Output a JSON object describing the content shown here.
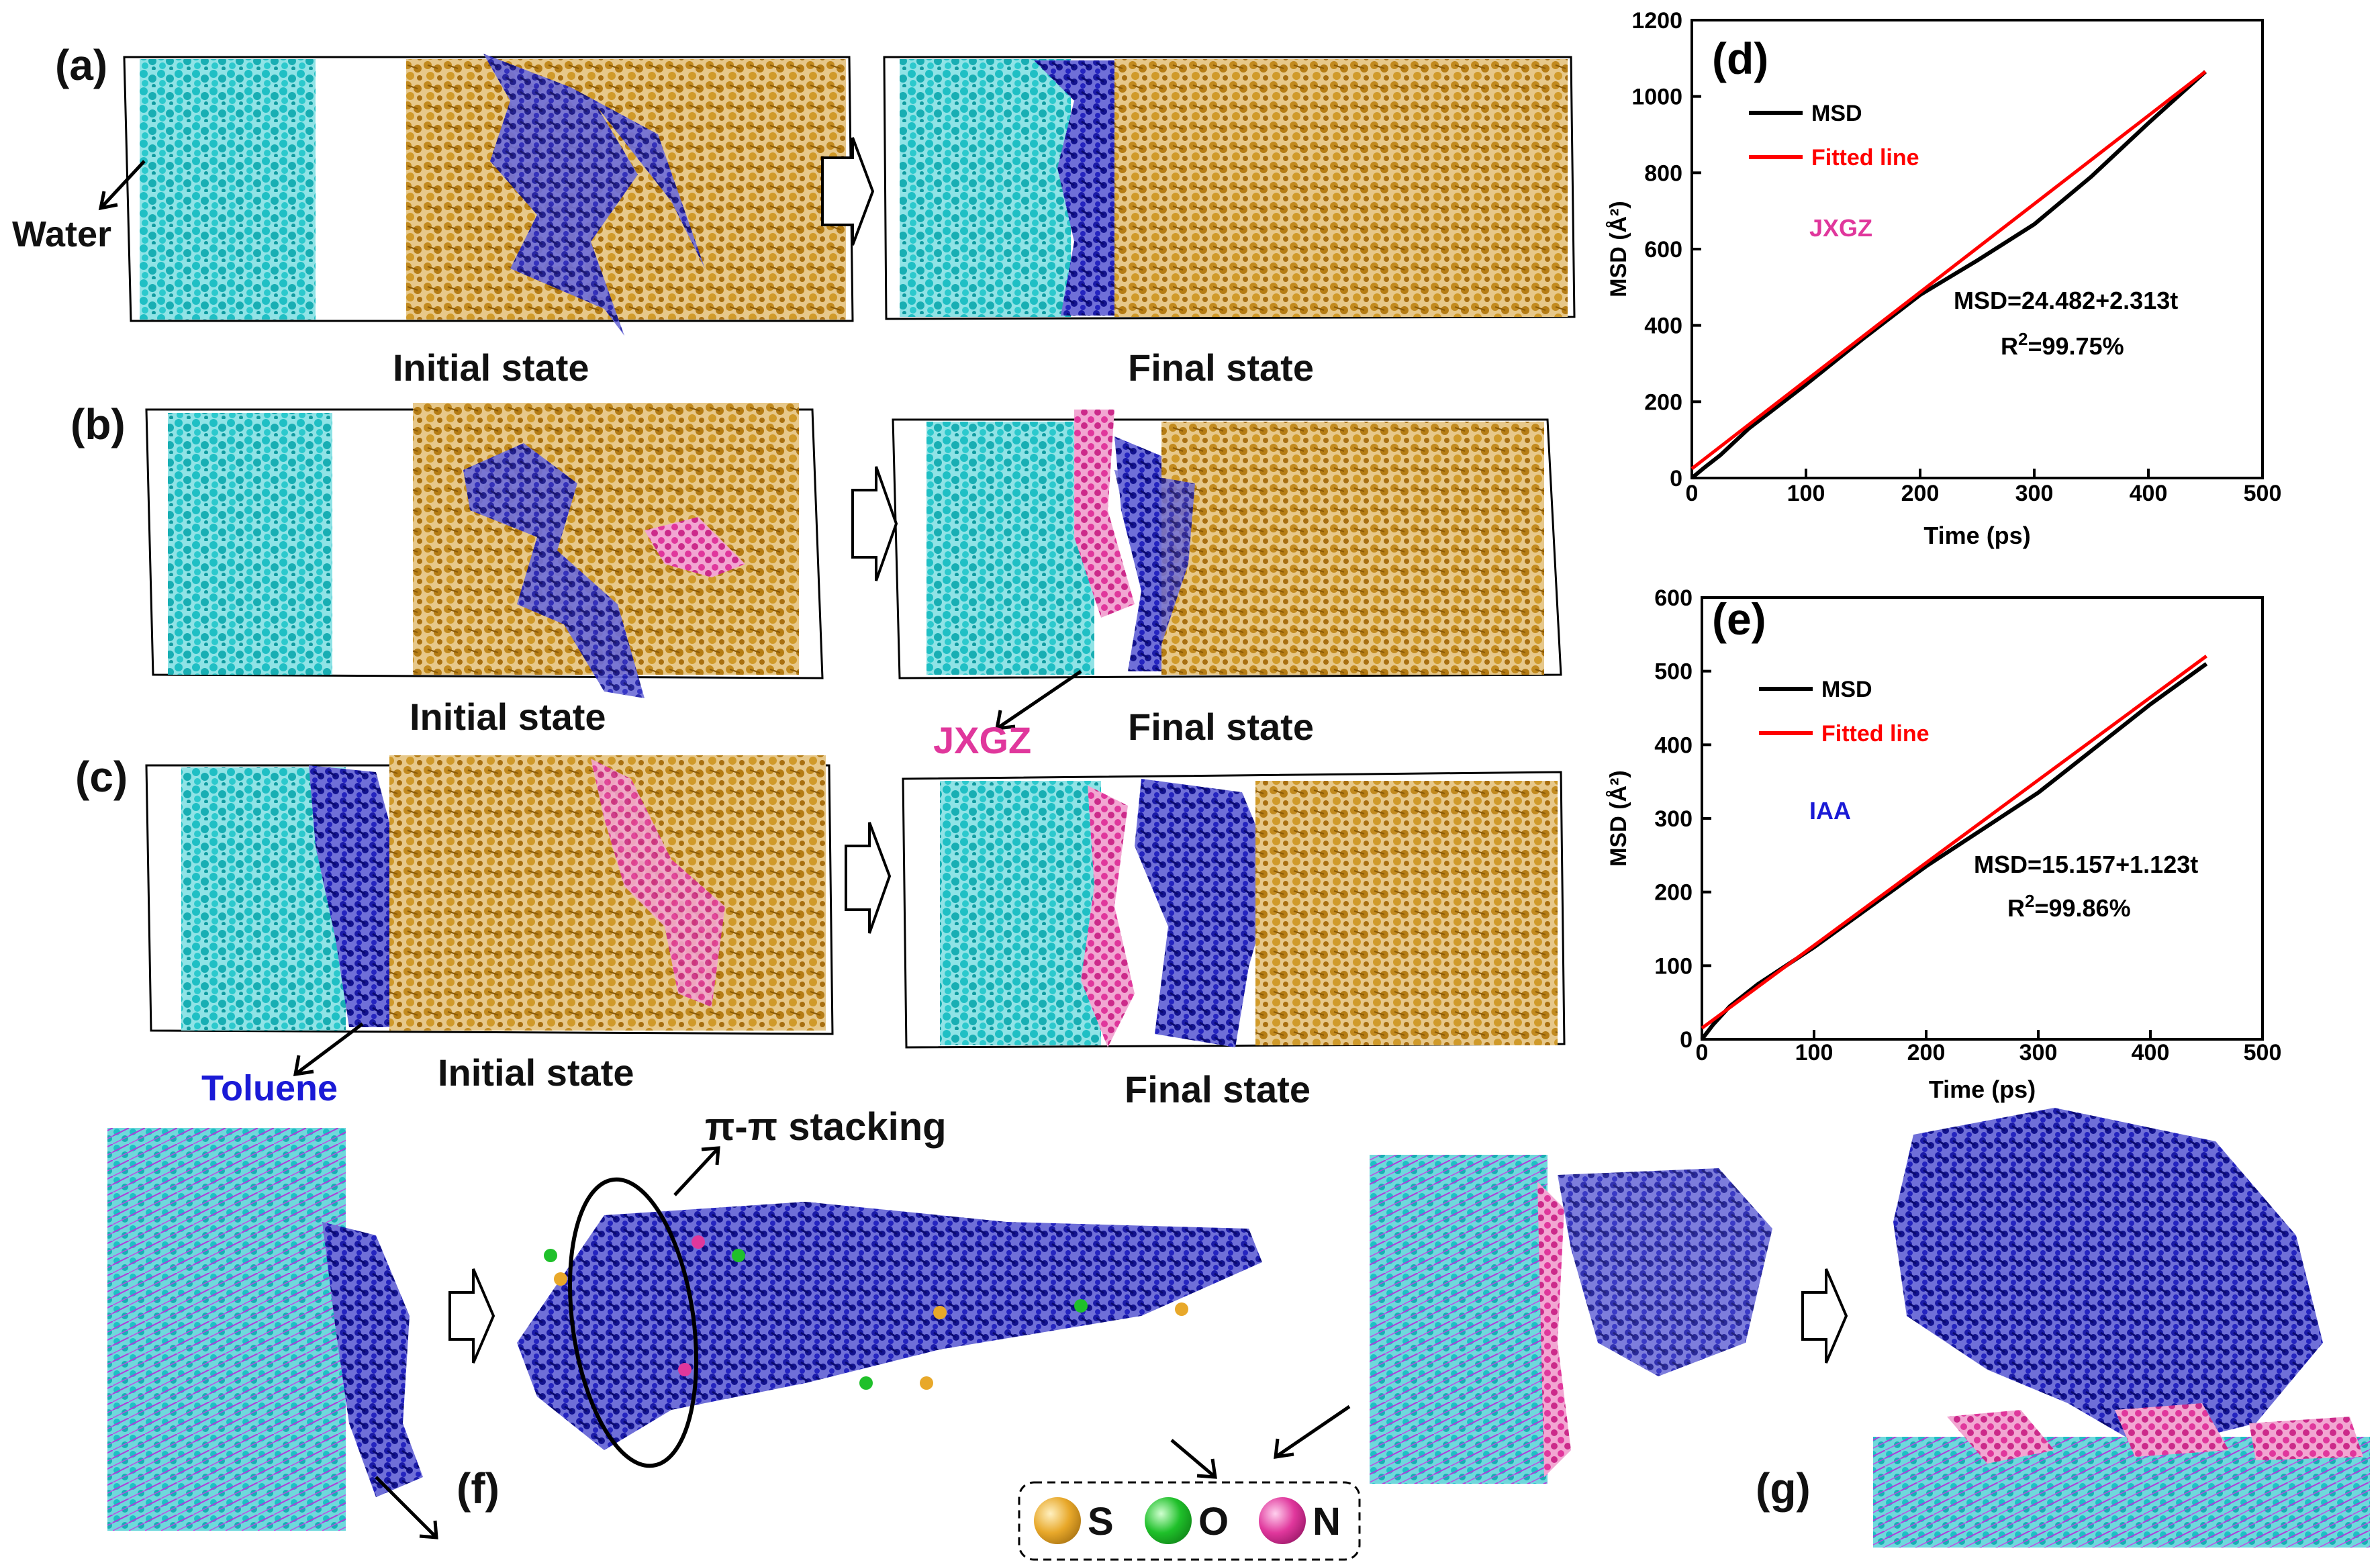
{
  "panels": {
    "a": {
      "label": "(a)",
      "initial_caption": "Initial state",
      "final_caption": "Final state",
      "water_label": "Water"
    },
    "b": {
      "label": "(b)",
      "initial_caption": "Initial state",
      "final_caption": "Final state",
      "jxgz_label": "JXGZ"
    },
    "c": {
      "label": "(c)",
      "initial_caption": "Initial state",
      "final_caption": "Final state",
      "toluene_label": "Toluene"
    },
    "f": {
      "label": "(f)",
      "stacking_label": "π-π stacking"
    },
    "g": {
      "label": "(g)"
    }
  },
  "legend_atoms": {
    "items": [
      {
        "symbol": "S",
        "color": "#e8a82a"
      },
      {
        "symbol": "O",
        "color": "#1fc02a"
      },
      {
        "symbol": "N",
        "color": "#e0379c"
      }
    ]
  },
  "colors": {
    "water": "#1fbfc4",
    "oil": "#c28a1e",
    "toluene": "#1a1aa8",
    "asphaltene": "#e0379c",
    "silica": "#b23ad8",
    "msd_line": "#000000",
    "fit_line": "#ff0000"
  },
  "chart_data": [
    {
      "panel": "(d)",
      "type": "line",
      "xlabel": "Time (ps)",
      "ylabel": "MSD (Å²)",
      "xlim": [
        0,
        500
      ],
      "ylim": [
        0,
        1200
      ],
      "xticks": [
        "0",
        "100",
        "200",
        "300",
        "400",
        "500"
      ],
      "yticks": [
        "0",
        "200",
        "400",
        "600",
        "800",
        "1000",
        "1200"
      ],
      "legend": [
        "MSD",
        "Fitted line"
      ],
      "legend_position": "top-left",
      "annotation_name": "JXGZ",
      "equation": "MSD=24.482+2.313t",
      "r2_prefix": "R",
      "r2_exp": "2",
      "r2_value": "=99.75%",
      "series": [
        {
          "name": "MSD",
          "color": "#000000",
          "x": [
            0,
            10,
            25,
            50,
            100,
            150,
            200,
            250,
            300,
            350,
            400,
            450
          ],
          "y": [
            0,
            25,
            60,
            130,
            245,
            365,
            480,
            570,
            665,
            790,
            930,
            1065
          ]
        },
        {
          "name": "Fitted line",
          "color": "#ff0000",
          "x": [
            0,
            450
          ],
          "y": [
            24.482,
            1065.3
          ]
        }
      ]
    },
    {
      "panel": "(e)",
      "type": "line",
      "xlabel": "Time (ps)",
      "ylabel": "MSD (Å²)",
      "xlim": [
        0,
        500
      ],
      "ylim": [
        0,
        600
      ],
      "xticks": [
        "0",
        "100",
        "200",
        "300",
        "400",
        "500"
      ],
      "yticks": [
        "0",
        "100",
        "200",
        "300",
        "400",
        "500",
        "600"
      ],
      "legend": [
        "MSD",
        "Fitted line"
      ],
      "legend_position": "top-left",
      "annotation_name": "IAA",
      "equation": "MSD=15.157+1.123t",
      "r2_prefix": "R",
      "r2_exp": "2",
      "r2_value": "=99.86%",
      "series": [
        {
          "name": "MSD",
          "color": "#000000",
          "x": [
            0,
            10,
            25,
            50,
            100,
            150,
            200,
            250,
            300,
            350,
            400,
            450
          ],
          "y": [
            0,
            20,
            45,
            75,
            125,
            180,
            235,
            285,
            335,
            395,
            455,
            510
          ]
        },
        {
          "name": "Fitted line",
          "color": "#ff0000",
          "x": [
            0,
            450
          ],
          "y": [
            15.157,
            520.5
          ]
        }
      ]
    }
  ]
}
